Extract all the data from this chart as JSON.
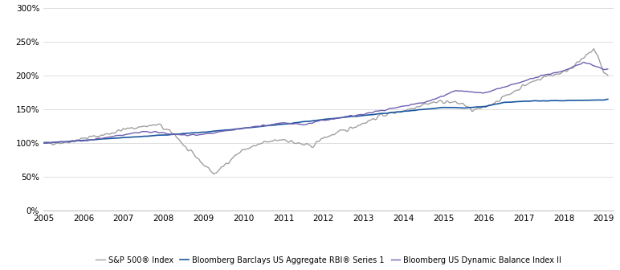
{
  "ylim": [
    0,
    300
  ],
  "yticks": [
    0,
    50,
    100,
    150,
    200,
    250,
    300
  ],
  "xlim_start": 2005.0,
  "xlim_end": 2019.25,
  "xticks": [
    2005,
    2006,
    2007,
    2008,
    2009,
    2010,
    2011,
    2012,
    2013,
    2014,
    2015,
    2016,
    2017,
    2018,
    2019
  ],
  "background_color": "#ffffff",
  "grid_color": "#d0d0d0",
  "sp500_color": "#a0a0a0",
  "agg_color": "#1a56a0",
  "dyn_color": "#7060b0",
  "sp500_label": "S&P 500® Index",
  "agg_label": "Bloomberg Barclays US Aggregate RBI® Series 1",
  "dyn_label": "Bloomberg US Dynamic Balance Index II",
  "linewidth": 1.0,
  "legend_fontsize": 7.0,
  "tick_fontsize": 7.5
}
